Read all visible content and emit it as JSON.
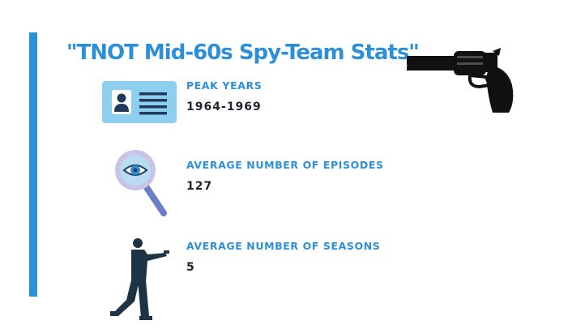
{
  "title": "\"TNOT Mid-60s Spy-Team Stats\"",
  "stats": [
    {
      "label": "PEAK YEARS",
      "value": "1964-1969",
      "icon": "id-card-icon"
    },
    {
      "label": "AVERAGE NUMBER OF EPISODES",
      "value": "127",
      "icon": "magnifying-glass-icon"
    },
    {
      "label": "AVERAGE NUMBER OF SEASONS",
      "value": "5",
      "icon": "spy-silhouette-icon"
    }
  ],
  "decorations": {
    "top_right": "revolver-icon"
  },
  "colors": {
    "accent": "#2d8fd8",
    "text_dark": "#1f2430",
    "id_card_bg": "#8ecff0",
    "id_card_dark": "#1f3a5c",
    "magnifier_handle": "#6a7fc7",
    "silhouette": "#1d3447",
    "background": "#ffffff"
  }
}
